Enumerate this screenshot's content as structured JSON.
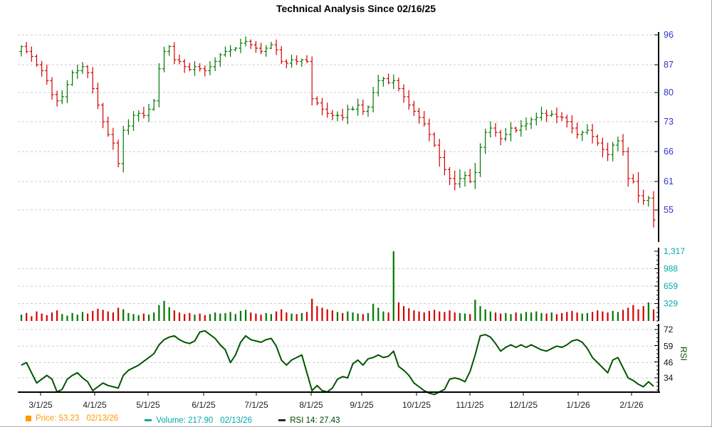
{
  "title": "Technical Analysis Since 02/16/25",
  "legend": {
    "price": {
      "label": "Price: 53.23",
      "date": "02/13/26",
      "color": "#ff9900",
      "swatch": "square"
    },
    "volume": {
      "label": "Volume: 217.90",
      "date": "02/13/26",
      "color": "#00aaaa",
      "swatch": "dash"
    },
    "rsi": {
      "label": "RSI 14: 27.43",
      "date": "",
      "color": "#004400",
      "swatch": "dash",
      "swatch_color": "#1a331a"
    }
  },
  "colors": {
    "up": "#007700",
    "down": "#d40000",
    "rsi_line": "#005500",
    "price_tick_label": "#3333cc",
    "volume_tick_label": "#00aaaa",
    "rsi_tick_label": "#111122",
    "x_tick_label": "#222222",
    "grid": "#cccccc",
    "axis": "#000000",
    "rsi_axis_title": "#005500"
  },
  "x_axis": {
    "month_labels": [
      "3/1/25",
      "4/1/25",
      "5/1/25",
      "6/1/25",
      "7/1/25",
      "8/1/25",
      "9/1/25",
      "10/1/25",
      "11/1/25",
      "12/1/25",
      "1/1/26",
      "2/1/26"
    ]
  },
  "chart_data": [
    {
      "name": "price",
      "type": "ohlc",
      "title": "Technical Analysis Since 02/16/25",
      "scale": "log",
      "ytick_labels": [
        "96",
        "87",
        "80",
        "73",
        "66",
        "61",
        "55"
      ],
      "ytick_values": [
        96,
        87,
        80,
        73,
        66,
        61,
        55
      ],
      "last_value": 53.23,
      "last_date": "02/13/26",
      "close": [
        92.5,
        91.0,
        89.5,
        87.0,
        85.5,
        83.0,
        79.5,
        78.0,
        79.0,
        82.0,
        85.0,
        85.5,
        86.5,
        85.0,
        81.0,
        77.0,
        73.0,
        70.0,
        68.0,
        64.0,
        71.0,
        72.0,
        74.5,
        75.0,
        74.5,
        76.0,
        78.0,
        86.0,
        91.0,
        92.5,
        88.5,
        88.0,
        86.5,
        85.8,
        86.5,
        86.0,
        85.5,
        86.5,
        88.0,
        90.0,
        91.0,
        91.5,
        92.0,
        93.5,
        94.0,
        93.0,
        92.0,
        91.0,
        92.0,
        93.0,
        91.5,
        88.0,
        87.5,
        88.5,
        88.0,
        88.5,
        88.0,
        78.5,
        77.5,
        76.0,
        75.0,
        74.5,
        74.5,
        74.0,
        76.0,
        76.0,
        77.0,
        75.5,
        76.5,
        80.0,
        83.0,
        83.5,
        82.5,
        83.0,
        81.0,
        79.0,
        77.0,
        75.5,
        74.0,
        72.5,
        70.0,
        67.5,
        65.0,
        63.0,
        61.5,
        60.5,
        61.5,
        62.0,
        61.0,
        62.5,
        67.0,
        70.5,
        71.5,
        70.5,
        69.0,
        70.0,
        71.5,
        71.0,
        72.0,
        72.5,
        73.5,
        74.0,
        75.0,
        74.5,
        74.8,
        74.2,
        74.0,
        73.0,
        71.5,
        70.0,
        70.5,
        71.0,
        69.5,
        68.0,
        66.5,
        65.5,
        67.5,
        68.5,
        66.0,
        61.5,
        61.0,
        58.0,
        57.0,
        57.5,
        53.23
      ]
    },
    {
      "name": "volume",
      "type": "bar",
      "ytick_labels": [
        "1,317",
        "988",
        "659",
        "329"
      ],
      "ytick_values": [
        1317,
        988,
        659,
        329
      ],
      "last_value": 217.9,
      "last_date": "02/13/26",
      "values": [
        120,
        150,
        90,
        180,
        140,
        110,
        160,
        200,
        130,
        100,
        150,
        120,
        170,
        140,
        190,
        230,
        210,
        180,
        160,
        250,
        220,
        150,
        130,
        110,
        140,
        120,
        160,
        300,
        380,
        260,
        200,
        160,
        130,
        150,
        120,
        140,
        110,
        130,
        160,
        140,
        150,
        170,
        130,
        190,
        210,
        160,
        140,
        120,
        150,
        130,
        180,
        220,
        160,
        140,
        130,
        150,
        170,
        420,
        280,
        250,
        220,
        200,
        170,
        150,
        180,
        160,
        140,
        130,
        150,
        320,
        250,
        180,
        160,
        1317,
        350,
        280,
        240,
        200,
        180,
        160,
        190,
        210,
        180,
        170,
        200,
        160,
        150,
        140,
        130,
        400,
        280,
        220,
        180,
        160,
        140,
        150,
        130,
        160,
        140,
        170,
        160,
        180,
        150,
        140,
        160,
        130,
        150,
        170,
        190,
        160,
        140,
        150,
        170,
        200,
        180,
        160,
        190,
        170,
        210,
        250,
        300,
        220,
        280,
        350,
        218
      ]
    },
    {
      "name": "rsi",
      "type": "line",
      "axis_title": "RSI",
      "period": 14,
      "ytick_labels": [
        "72",
        "59",
        "46",
        "34"
      ],
      "ytick_values": [
        72,
        59,
        46,
        34
      ],
      "last_value": 27.43,
      "values": [
        44,
        46,
        38,
        30,
        33,
        36,
        33,
        23,
        25,
        33,
        36,
        38,
        34,
        31,
        24,
        27,
        30,
        28,
        27,
        26,
        36,
        40,
        42,
        44,
        47,
        50,
        53,
        60,
        64,
        66,
        67,
        64,
        62,
        61,
        63,
        70,
        71,
        68,
        65,
        60,
        56,
        46,
        52,
        62,
        67,
        64,
        63,
        62,
        64,
        65,
        59,
        48,
        44,
        48,
        50,
        52,
        38,
        24,
        28,
        24,
        23,
        26,
        33,
        35,
        34,
        45,
        48,
        44,
        49,
        50,
        52,
        50,
        51,
        55,
        43,
        40,
        36,
        30,
        27,
        24,
        22,
        21,
        23,
        25,
        33,
        34,
        33,
        31,
        39,
        52,
        67,
        68,
        66,
        61,
        55,
        58,
        60,
        58,
        60,
        58,
        60,
        58,
        56,
        55,
        57,
        59,
        58,
        60,
        63,
        64,
        62,
        57,
        50,
        46,
        42,
        38,
        48,
        50,
        42,
        34,
        32,
        29,
        27,
        31,
        27.43
      ]
    }
  ]
}
